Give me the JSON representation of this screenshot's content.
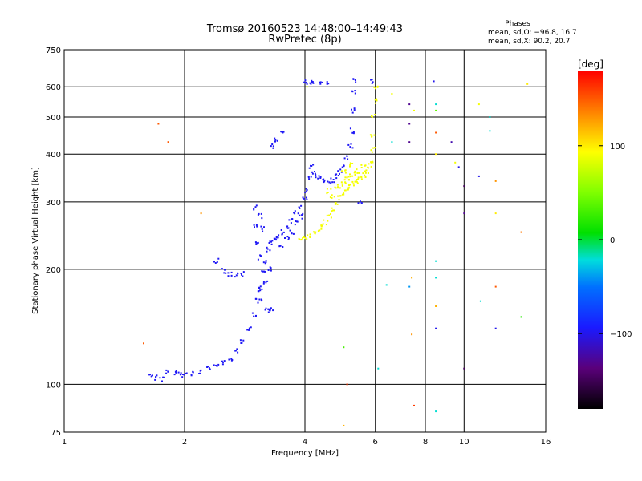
{
  "chart_data": {
    "type": "scatter",
    "title": "Tromsø 20160523 14:48:00–14:49:43",
    "subtitle": "RwPretec (8p)",
    "xlabel": "Frequency [MHz]",
    "ylabel": "Stationary phase Virtual Height [km]",
    "x_scale": "log",
    "y_scale": "log",
    "xlim": [
      1,
      16
    ],
    "ylim": [
      75,
      750
    ],
    "x_ticks": [
      1,
      2,
      4,
      6,
      8,
      10,
      16
    ],
    "y_ticks": [
      75,
      100,
      200,
      300,
      400,
      500,
      600,
      750
    ],
    "grid": true,
    "colorbar": {
      "title": "[deg]",
      "ticks": [
        "100",
        "0",
        "−100"
      ],
      "tick_values": [
        100,
        0,
        -100
      ],
      "range": [
        -180,
        180
      ],
      "colormap": "rainbow"
    },
    "phases_info": {
      "title": "Phases",
      "line1": "mean, sd,O: −96.8, 16.7",
      "line2": "mean, sd,X:  90.2, 20.7"
    },
    "series": [
      {
        "mode": "O",
        "phase_mean": -96.8,
        "points": [
          [
            1.82,
            108
          ],
          [
            1.9,
            107
          ],
          [
            1.95,
            106
          ],
          [
            2.0,
            106
          ],
          [
            2.1,
            107
          ],
          [
            2.2,
            108
          ],
          [
            2.3,
            110
          ],
          [
            2.4,
            112
          ],
          [
            2.5,
            114
          ],
          [
            2.6,
            117
          ],
          [
            2.7,
            122
          ],
          [
            2.8,
            130
          ],
          [
            2.9,
            140
          ],
          [
            3.0,
            152
          ],
          [
            3.05,
            165
          ],
          [
            3.1,
            178
          ],
          [
            3.15,
            195
          ],
          [
            3.2,
            210
          ],
          [
            3.25,
            225
          ],
          [
            3.3,
            235
          ],
          [
            3.35,
            240
          ],
          [
            3.4,
            245
          ],
          [
            3.5,
            250
          ],
          [
            3.6,
            258
          ],
          [
            3.7,
            268
          ],
          [
            3.8,
            280
          ],
          [
            3.9,
            292
          ],
          [
            4.0,
            305
          ],
          [
            4.05,
            320
          ],
          [
            4.1,
            345
          ],
          [
            4.15,
            370
          ],
          [
            4.2,
            360
          ],
          [
            4.3,
            350
          ],
          [
            4.4,
            345
          ],
          [
            4.5,
            340
          ],
          [
            4.6,
            338
          ],
          [
            4.7,
            342
          ],
          [
            4.8,
            350
          ],
          [
            4.9,
            360
          ],
          [
            5.0,
            370
          ],
          [
            5.1,
            390
          ],
          [
            5.2,
            420
          ],
          [
            5.25,
            460
          ],
          [
            5.3,
            520
          ],
          [
            5.32,
            580
          ],
          [
            5.35,
            625
          ],
          [
            3.15,
            165
          ],
          [
            3.2,
            158
          ],
          [
            3.25,
            156
          ],
          [
            3.3,
            157
          ],
          [
            3.1,
            175
          ],
          [
            3.2,
            185
          ],
          [
            3.25,
            200
          ],
          [
            3.0,
            260
          ],
          [
            3.05,
            235
          ],
          [
            3.1,
            215
          ],
          [
            3.0,
            290
          ],
          [
            3.1,
            275
          ],
          [
            3.15,
            255
          ],
          [
            3.5,
            230
          ],
          [
            3.6,
            240
          ],
          [
            3.7,
            250
          ],
          [
            3.8,
            265
          ],
          [
            3.9,
            275
          ],
          [
            4.0,
            620
          ],
          [
            4.1,
            615
          ],
          [
            4.2,
            612
          ],
          [
            4.4,
            610
          ],
          [
            4.6,
            612
          ],
          [
            3.3,
            420
          ],
          [
            3.4,
            435
          ],
          [
            3.5,
            460
          ],
          [
            2.4,
            210
          ],
          [
            2.5,
            198
          ],
          [
            2.6,
            194
          ],
          [
            2.7,
            193
          ],
          [
            2.8,
            194
          ],
          [
            1.65,
            105
          ],
          [
            1.7,
            104
          ],
          [
            1.75,
            103
          ],
          [
            5.9,
            620
          ],
          [
            5.5,
            300
          ]
        ]
      },
      {
        "mode": "X",
        "phase_mean": 90.2,
        "points": [
          [
            3.9,
            242
          ],
          [
            4.0,
            240
          ],
          [
            4.1,
            244
          ],
          [
            4.2,
            248
          ],
          [
            4.3,
            252
          ],
          [
            4.4,
            258
          ],
          [
            4.5,
            265
          ],
          [
            4.6,
            275
          ],
          [
            4.7,
            285
          ],
          [
            4.8,
            296
          ],
          [
            4.9,
            308
          ],
          [
            5.0,
            318
          ],
          [
            5.1,
            325
          ],
          [
            5.2,
            330
          ],
          [
            5.3,
            335
          ],
          [
            5.4,
            340
          ],
          [
            5.5,
            345
          ],
          [
            5.6,
            352
          ],
          [
            5.7,
            360
          ],
          [
            5.8,
            372
          ],
          [
            5.85,
            385
          ],
          [
            5.9,
            410
          ],
          [
            5.92,
            450
          ],
          [
            5.95,
            500
          ],
          [
            5.97,
            550
          ],
          [
            6.0,
            600
          ],
          [
            4.6,
            320
          ],
          [
            4.8,
            330
          ],
          [
            5.0,
            340
          ],
          [
            5.2,
            350
          ],
          [
            5.4,
            360
          ],
          [
            5.6,
            370
          ],
          [
            4.7,
            310
          ],
          [
            4.9,
            330
          ],
          [
            5.1,
            345
          ],
          [
            5.3,
            355
          ],
          [
            5.0,
            360
          ],
          [
            5.2,
            375
          ]
        ]
      },
      {
        "mode": "scattered",
        "points": [
          [
            1.58,
            128,
            150
          ],
          [
            1.72,
            480,
            150
          ],
          [
            1.82,
            430,
            150
          ],
          [
            2.2,
            280,
            130
          ],
          [
            4.05,
            600,
            80
          ],
          [
            5.0,
            78,
            120
          ],
          [
            5.0,
            125,
            30
          ],
          [
            5.1,
            100,
            160
          ],
          [
            6.1,
            110,
            -20
          ],
          [
            6.4,
            182,
            -20
          ],
          [
            6.6,
            575,
            90
          ],
          [
            6.6,
            430,
            -20
          ],
          [
            7.3,
            540,
            -130
          ],
          [
            7.3,
            480,
            -130
          ],
          [
            7.3,
            430,
            -130
          ],
          [
            7.3,
            180,
            -40
          ],
          [
            7.4,
            190,
            120
          ],
          [
            7.4,
            135,
            130
          ],
          [
            7.5,
            520,
            90
          ],
          [
            7.5,
            88,
            160
          ],
          [
            8.4,
            620,
            -100
          ],
          [
            8.5,
            540,
            -20
          ],
          [
            8.5,
            520,
            40
          ],
          [
            8.5,
            455,
            150
          ],
          [
            8.5,
            400,
            100
          ],
          [
            8.5,
            210,
            -20
          ],
          [
            8.5,
            190,
            -20
          ],
          [
            8.5,
            160,
            120
          ],
          [
            8.5,
            140,
            -100
          ],
          [
            8.5,
            85,
            -20
          ],
          [
            9.3,
            430,
            -120
          ],
          [
            9.5,
            380,
            90
          ],
          [
            9.7,
            370,
            -100
          ],
          [
            10.0,
            330,
            -150
          ],
          [
            10.0,
            280,
            -130
          ],
          [
            10.0,
            110,
            -150
          ],
          [
            10.9,
            540,
            90
          ],
          [
            10.9,
            350,
            -100
          ],
          [
            11.6,
            500,
            -20
          ],
          [
            11.6,
            460,
            -20
          ],
          [
            12.0,
            340,
            130
          ],
          [
            12.0,
            280,
            100
          ],
          [
            12.0,
            180,
            150
          ],
          [
            12.0,
            140,
            -100
          ],
          [
            13.9,
            250,
            140
          ],
          [
            14.4,
            610,
            100
          ],
          [
            13.9,
            150,
            20
          ],
          [
            11.0,
            165,
            -20
          ]
        ]
      }
    ]
  }
}
